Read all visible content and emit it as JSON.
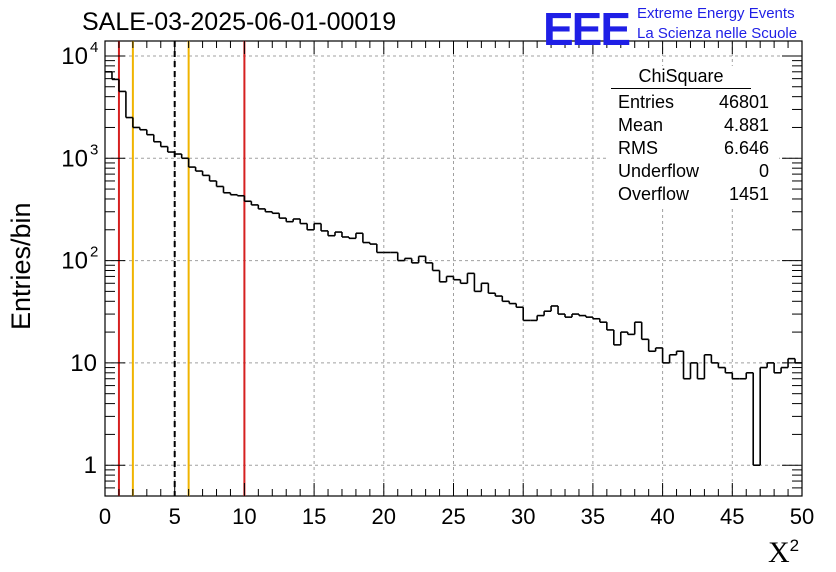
{
  "title": "SALE-03-2025-06-01-00019",
  "logo": {
    "text": "EEE",
    "line1": "Extreme Energy Events",
    "line2": "La Scienza nelle Scuole",
    "color": "#1f1fe6"
  },
  "stats": {
    "title": "ChiSquare",
    "rows": [
      {
        "label": "Entries",
        "value": "46801"
      },
      {
        "label": "Mean",
        "value": "4.881"
      },
      {
        "label": "RMS",
        "value": "6.646"
      },
      {
        "label": "Underflow",
        "value": "0"
      },
      {
        "label": "Overflow",
        "value": "1451"
      }
    ]
  },
  "chart_data": {
    "type": "histogram",
    "title": "SALE-03-2025-06-01-00019",
    "xlabel": "X",
    "xlabel_sup": "2",
    "ylabel": "Entries/bin",
    "xlim": [
      0,
      50
    ],
    "ylim": [
      0.5,
      14000
    ],
    "yscale": "log",
    "grid": true,
    "bin_width": 0.5,
    "x_ticks": [
      "0",
      "5",
      "10",
      "15",
      "20",
      "25",
      "30",
      "35",
      "40",
      "45",
      "50"
    ],
    "y_ticks": [
      {
        "value": 1,
        "label": "1"
      },
      {
        "value": 10,
        "label": "10"
      },
      {
        "value": 100,
        "label": "10",
        "exp": "2"
      },
      {
        "value": 1000,
        "label": "10",
        "exp": "3"
      },
      {
        "value": 10000,
        "label": "10",
        "exp": "4"
      }
    ],
    "values": [
      7000,
      5900,
      4500,
      2500,
      2000,
      1900,
      1700,
      1450,
      1300,
      1150,
      1100,
      1000,
      820,
      750,
      680,
      600,
      530,
      460,
      440,
      430,
      380,
      350,
      320,
      300,
      290,
      260,
      240,
      255,
      230,
      200,
      230,
      195,
      175,
      190,
      170,
      165,
      185,
      150,
      145,
      120,
      120,
      120,
      100,
      105,
      95,
      110,
      95,
      80,
      62,
      70,
      65,
      60,
      75,
      50,
      60,
      48,
      45,
      40,
      38,
      35,
      26,
      26,
      29,
      32,
      36,
      30,
      28,
      30,
      29,
      28,
      27,
      25,
      21,
      15,
      20,
      19,
      25,
      17,
      13,
      14,
      10,
      12,
      13,
      7,
      10,
      7,
      12,
      10,
      9,
      8,
      7,
      7,
      8,
      1,
      9,
      10,
      8,
      9,
      11,
      10
    ],
    "vertical_lines": [
      {
        "x": 1,
        "color": "#d62020",
        "style": "solid"
      },
      {
        "x": 2,
        "color": "#f0b400",
        "style": "solid"
      },
      {
        "x": 5,
        "color": "#000000",
        "style": "dashed"
      },
      {
        "x": 6,
        "color": "#f0b400",
        "style": "solid"
      },
      {
        "x": 10,
        "color": "#d62020",
        "style": "solid"
      }
    ]
  }
}
